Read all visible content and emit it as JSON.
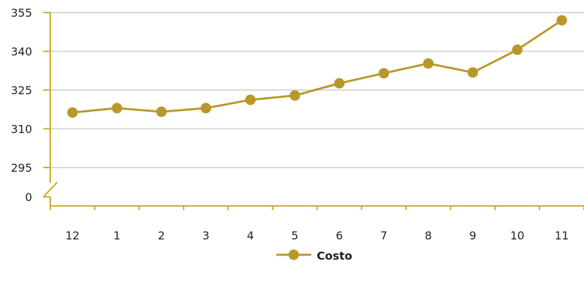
{
  "chart_data": {
    "type": "line",
    "title": "",
    "xlabel": "",
    "ylabel": "",
    "categories": [
      "12",
      "1",
      "2",
      "3",
      "4",
      "5",
      "6",
      "7",
      "8",
      "9",
      "10",
      "11"
    ],
    "series": [
      {
        "name": "Costo",
        "color": "#b8982a",
        "values": [
          316.3,
          318.0,
          316.6,
          318.0,
          321.2,
          322.9,
          327.6,
          331.5,
          335.3,
          331.8,
          340.6,
          352.0
        ]
      }
    ],
    "y_ticks": [
      "0",
      "295",
      "310",
      "325",
      "340",
      "355"
    ],
    "ylim": [
      295,
      355
    ],
    "y_axis_break": true,
    "grid": true,
    "legend": "bottom-center",
    "axis_color": "#c9ab2e",
    "grid_color": "#d9d9d9"
  }
}
